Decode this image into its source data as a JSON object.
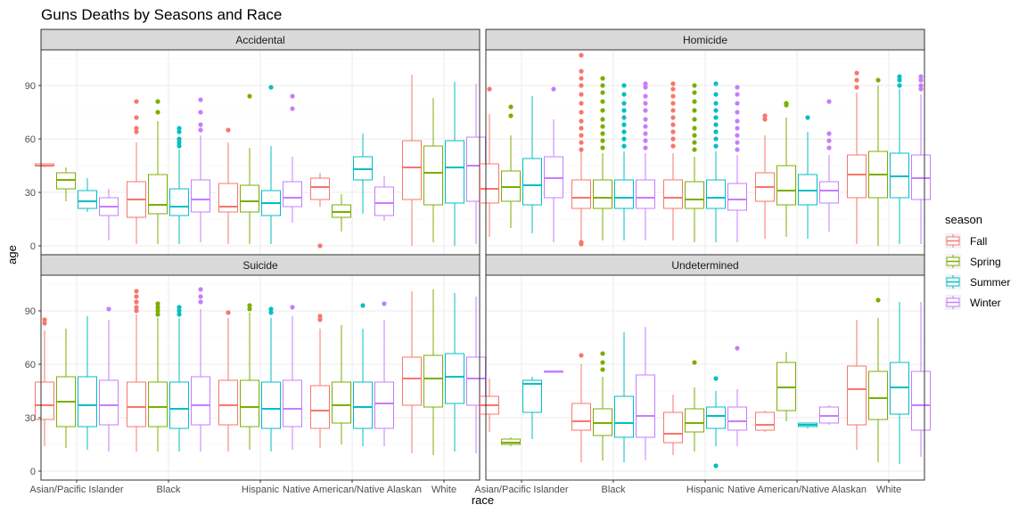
{
  "chart_data": {
    "type": "boxplot",
    "title": "Guns Deaths by Seasons and Race",
    "xlabel": "race",
    "ylabel": "age",
    "ylim": [
      -5,
      110
    ],
    "yticks": [
      0,
      30,
      60,
      90
    ],
    "categories": [
      "Asian/Pacific Islander",
      "Black",
      "Hispanic",
      "Native American/Native Alaskan",
      "White"
    ],
    "legend": {
      "title": "season",
      "position": "right",
      "items": [
        {
          "name": "Fall",
          "color": "#F8766D"
        },
        {
          "name": "Spring",
          "color": "#7CAE00"
        },
        {
          "name": "Summer",
          "color": "#00BFC4"
        },
        {
          "name": "Winter",
          "color": "#C77CFF"
        }
      ]
    },
    "grid": true,
    "panels": [
      {
        "name": "Accidental",
        "boxes": [
          [
            {
              "q1": 45,
              "med": 45,
              "q3": 46,
              "lo": 44,
              "hi": 46,
              "out": []
            },
            {
              "q1": 32,
              "med": 37,
              "q3": 41,
              "lo": 25,
              "hi": 44,
              "out": []
            },
            {
              "q1": 21,
              "med": 25,
              "q3": 31,
              "lo": 19,
              "hi": 38,
              "out": []
            },
            {
              "q1": 17,
              "med": 22,
              "q3": 27,
              "lo": 3,
              "hi": 32,
              "out": []
            }
          ],
          [
            {
              "q1": 16,
              "med": 26,
              "q3": 36,
              "lo": 1,
              "hi": 58,
              "out": [
                64,
                66,
                72,
                81
              ]
            },
            {
              "q1": 18,
              "med": 23,
              "q3": 40,
              "lo": 1,
              "hi": 70,
              "out": [
                75,
                81
              ]
            },
            {
              "q1": 17,
              "med": 22,
              "q3": 32,
              "lo": 1,
              "hi": 54,
              "out": [
                56,
                58,
                60,
                64,
                66
              ]
            },
            {
              "q1": 19,
              "med": 26,
              "q3": 37,
              "lo": 2,
              "hi": 62,
              "out": [
                65,
                68,
                75,
                82
              ]
            }
          ],
          [
            {
              "q1": 19,
              "med": 22,
              "q3": 35,
              "lo": 1,
              "hi": 58,
              "out": [
                65
              ]
            },
            {
              "q1": 19,
              "med": 25,
              "q3": 34,
              "lo": 1,
              "hi": 55,
              "out": [
                84
              ]
            },
            {
              "q1": 17,
              "med": 24,
              "q3": 31,
              "lo": 1,
              "hi": 56,
              "out": [
                89
              ]
            },
            {
              "q1": 22,
              "med": 27,
              "q3": 36,
              "lo": 13,
              "hi": 50,
              "out": [
                77,
                84
              ]
            }
          ],
          [
            {
              "q1": 26,
              "med": 33,
              "q3": 38,
              "lo": 22,
              "hi": 41,
              "out": [
                0
              ]
            },
            {
              "q1": 16,
              "med": 19,
              "q3": 23,
              "lo": 8,
              "hi": 29,
              "out": []
            },
            {
              "q1": 37,
              "med": 43,
              "q3": 50,
              "lo": 18,
              "hi": 63,
              "out": []
            },
            {
              "q1": 17,
              "med": 24,
              "q3": 33,
              "lo": 14,
              "hi": 39,
              "out": []
            }
          ],
          [
            {
              "q1": 26,
              "med": 44,
              "q3": 59,
              "lo": 0,
              "hi": 96,
              "out": []
            },
            {
              "q1": 23,
              "med": 41,
              "q3": 56,
              "lo": 2,
              "hi": 83,
              "out": []
            },
            {
              "q1": 24,
              "med": 44,
              "q3": 59,
              "lo": 0,
              "hi": 92,
              "out": []
            },
            {
              "q1": 25,
              "med": 45,
              "q3": 61,
              "lo": 1,
              "hi": 91,
              "out": []
            }
          ]
        ]
      },
      {
        "name": "Homicide",
        "boxes": [
          [
            {
              "q1": 24,
              "med": 32,
              "q3": 46,
              "lo": 5,
              "hi": 74,
              "out": [
                88
              ]
            },
            {
              "q1": 25,
              "med": 33,
              "q3": 42,
              "lo": 10,
              "hi": 62,
              "out": [
                73,
                78
              ]
            },
            {
              "q1": 23,
              "med": 34,
              "q3": 49,
              "lo": 7,
              "hi": 84,
              "out": []
            },
            {
              "q1": 27,
              "med": 38,
              "q3": 50,
              "lo": 2,
              "hi": 71,
              "out": [
                88
              ]
            }
          ],
          [
            {
              "q1": 21,
              "med": 27,
              "q3": 37,
              "lo": 3,
              "hi": 53,
              "out": [
                1,
                2,
                54,
                58,
                62,
                66,
                70,
                75,
                80,
                85,
                90,
                94,
                98,
                107
              ]
            },
            {
              "q1": 21,
              "med": 27,
              "q3": 37,
              "lo": 3,
              "hi": 52,
              "out": [
                55,
                59,
                63,
                67,
                71,
                76,
                81,
                86,
                90,
                94
              ]
            },
            {
              "q1": 21,
              "med": 27,
              "q3": 37,
              "lo": 3,
              "hi": 53,
              "out": [
                56,
                60,
                64,
                68,
                72,
                76,
                80,
                85,
                90
              ]
            },
            {
              "q1": 21,
              "med": 27,
              "q3": 37,
              "lo": 3,
              "hi": 52,
              "out": [
                55,
                59,
                63,
                67,
                71,
                76,
                80,
                84,
                89,
                91
              ]
            }
          ],
          [
            {
              "q1": 21,
              "med": 27,
              "q3": 37,
              "lo": 3,
              "hi": 52,
              "out": [
                56,
                60,
                64,
                68,
                72,
                76,
                80,
                84,
                88,
                91
              ]
            },
            {
              "q1": 21,
              "med": 26,
              "q3": 36,
              "lo": 2,
              "hi": 50,
              "out": [
                54,
                58,
                62,
                66,
                71,
                76,
                81,
                86,
                90
              ]
            },
            {
              "q1": 21,
              "med": 27,
              "q3": 37,
              "lo": 2,
              "hi": 53,
              "out": [
                56,
                60,
                64,
                68,
                72,
                76,
                80,
                85,
                91
              ]
            },
            {
              "q1": 20,
              "med": 26,
              "q3": 35,
              "lo": 2,
              "hi": 51,
              "out": [
                54,
                58,
                62,
                66,
                70,
                75,
                80,
                85,
                89
              ]
            }
          ],
          [
            {
              "q1": 25,
              "med": 33,
              "q3": 41,
              "lo": 4,
              "hi": 62,
              "out": [
                71,
                73
              ]
            },
            {
              "q1": 23,
              "med": 31,
              "q3": 45,
              "lo": 5,
              "hi": 72,
              "out": [
                79,
                80
              ]
            },
            {
              "q1": 23,
              "med": 31,
              "q3": 40,
              "lo": 4,
              "hi": 64,
              "out": [
                72
              ]
            },
            {
              "q1": 24,
              "med": 31,
              "q3": 36,
              "lo": 8,
              "hi": 51,
              "out": [
                55,
                59,
                63,
                81
              ]
            }
          ],
          [
            {
              "q1": 27,
              "med": 40,
              "q3": 51,
              "lo": 1,
              "hi": 86,
              "out": [
                89,
                93,
                97
              ]
            },
            {
              "q1": 27,
              "med": 40,
              "q3": 53,
              "lo": 0,
              "hi": 90,
              "out": [
                93
              ]
            },
            {
              "q1": 27,
              "med": 39,
              "q3": 52,
              "lo": 1,
              "hi": 88,
              "out": [
                90,
                93,
                95
              ]
            },
            {
              "q1": 26,
              "med": 38,
              "q3": 51,
              "lo": 1,
              "hi": 85,
              "out": [
                88,
                90,
                93,
                95
              ]
            }
          ]
        ]
      },
      {
        "name": "Suicide",
        "boxes": [
          [
            {
              "q1": 29,
              "med": 37,
              "q3": 50,
              "lo": 14,
              "hi": 79,
              "out": [
                83,
                85
              ]
            },
            {
              "q1": 25,
              "med": 39,
              "q3": 53,
              "lo": 13,
              "hi": 80,
              "out": []
            },
            {
              "q1": 25,
              "med": 37,
              "q3": 53,
              "lo": 12,
              "hi": 87,
              "out": []
            },
            {
              "q1": 26,
              "med": 37,
              "q3": 51,
              "lo": 11,
              "hi": 85,
              "out": [
                91
              ]
            }
          ],
          [
            {
              "q1": 25,
              "med": 36,
              "q3": 50,
              "lo": 11,
              "hi": 88,
              "out": [
                90,
                92,
                95,
                98,
                101
              ]
            },
            {
              "q1": 25,
              "med": 36,
              "q3": 50,
              "lo": 11,
              "hi": 86,
              "out": [
                88,
                90,
                92,
                94
              ]
            },
            {
              "q1": 24,
              "med": 35,
              "q3": 50,
              "lo": 11,
              "hi": 86,
              "out": [
                88,
                90,
                92
              ]
            },
            {
              "q1": 26,
              "med": 37,
              "q3": 53,
              "lo": 11,
              "hi": 91,
              "out": [
                95,
                98,
                102
              ]
            }
          ],
          [
            {
              "q1": 26,
              "med": 37,
              "q3": 51,
              "lo": 11,
              "hi": 86,
              "out": [
                89
              ]
            },
            {
              "q1": 25,
              "med": 36,
              "q3": 51,
              "lo": 12,
              "hi": 89,
              "out": [
                91,
                93
              ]
            },
            {
              "q1": 24,
              "med": 35,
              "q3": 50,
              "lo": 11,
              "hi": 86,
              "out": [
                89,
                91
              ]
            },
            {
              "q1": 25,
              "med": 35,
              "q3": 51,
              "lo": 12,
              "hi": 87,
              "out": [
                92
              ]
            }
          ],
          [
            {
              "q1": 24,
              "med": 34,
              "q3": 48,
              "lo": 13,
              "hi": 80,
              "out": [
                85,
                87
              ]
            },
            {
              "q1": 27,
              "med": 37,
              "q3": 50,
              "lo": 15,
              "hi": 82,
              "out": []
            },
            {
              "q1": 24,
              "med": 36,
              "q3": 50,
              "lo": 14,
              "hi": 80,
              "out": [
                93
              ]
            },
            {
              "q1": 24,
              "med": 38,
              "q3": 50,
              "lo": 14,
              "hi": 85,
              "out": [
                94
              ]
            }
          ],
          [
            {
              "q1": 37,
              "med": 52,
              "q3": 64,
              "lo": 10,
              "hi": 101,
              "out": []
            },
            {
              "q1": 36,
              "med": 52,
              "q3": 65,
              "lo": 9,
              "hi": 102,
              "out": []
            },
            {
              "q1": 38,
              "med": 53,
              "q3": 66,
              "lo": 11,
              "hi": 100,
              "out": []
            },
            {
              "q1": 37,
              "med": 52,
              "q3": 64,
              "lo": 10,
              "hi": 98,
              "out": []
            }
          ]
        ]
      },
      {
        "name": "Undetermined",
        "boxes": [
          [
            {
              "q1": 32,
              "med": 37,
              "q3": 42,
              "lo": 22,
              "hi": 52,
              "out": []
            },
            {
              "q1": 15,
              "med": 16,
              "q3": 18,
              "lo": 14,
              "hi": 19,
              "out": []
            },
            {
              "q1": 33,
              "med": 49,
              "q3": 51,
              "lo": 18,
              "hi": 53,
              "out": []
            },
            {
              "q1": 56,
              "med": 56,
              "q3": 56,
              "lo": 56,
              "hi": 56,
              "out": []
            }
          ],
          [
            {
              "q1": 23,
              "med": 28,
              "q3": 38,
              "lo": 5,
              "hi": 60,
              "out": [
                65
              ]
            },
            {
              "q1": 20,
              "med": 27,
              "q3": 35,
              "lo": 6,
              "hi": 53,
              "out": [
                57,
                61,
                66
              ]
            },
            {
              "q1": 19,
              "med": 27,
              "q3": 42,
              "lo": 5,
              "hi": 78,
              "out": []
            },
            {
              "q1": 19,
              "med": 31,
              "q3": 54,
              "lo": 6,
              "hi": 81,
              "out": []
            }
          ],
          [
            {
              "q1": 16,
              "med": 21,
              "q3": 33,
              "lo": 9,
              "hi": 43,
              "out": []
            },
            {
              "q1": 22,
              "med": 27,
              "q3": 35,
              "lo": 11,
              "hi": 47,
              "out": [
                61
              ]
            },
            {
              "q1": 24,
              "med": 31,
              "q3": 36,
              "lo": 14,
              "hi": 45,
              "out": [
                3,
                52
              ]
            },
            {
              "q1": 23,
              "med": 28,
              "q3": 36,
              "lo": 14,
              "hi": 46,
              "out": [
                69
              ]
            }
          ],
          [
            {
              "q1": 23,
              "med": 26,
              "q3": 33,
              "lo": 22,
              "hi": 34,
              "out": []
            },
            {
              "q1": 34,
              "med": 47,
              "q3": 61,
              "lo": 28,
              "hi": 67,
              "out": []
            },
            {
              "q1": 25,
              "med": 26,
              "q3": 27,
              "lo": 24,
              "hi": 27,
              "out": []
            },
            {
              "q1": 27,
              "med": 31,
              "q3": 36,
              "lo": 26,
              "hi": 37,
              "out": []
            }
          ],
          [
            {
              "q1": 26,
              "med": 46,
              "q3": 59,
              "lo": 12,
              "hi": 85,
              "out": []
            },
            {
              "q1": 29,
              "med": 41,
              "q3": 56,
              "lo": 5,
              "hi": 86,
              "out": [
                96
              ]
            },
            {
              "q1": 32,
              "med": 47,
              "q3": 61,
              "lo": 4,
              "hi": 95,
              "out": []
            },
            {
              "q1": 23,
              "med": 37,
              "q3": 56,
              "lo": 8,
              "hi": 95,
              "out": []
            }
          ]
        ]
      }
    ]
  }
}
